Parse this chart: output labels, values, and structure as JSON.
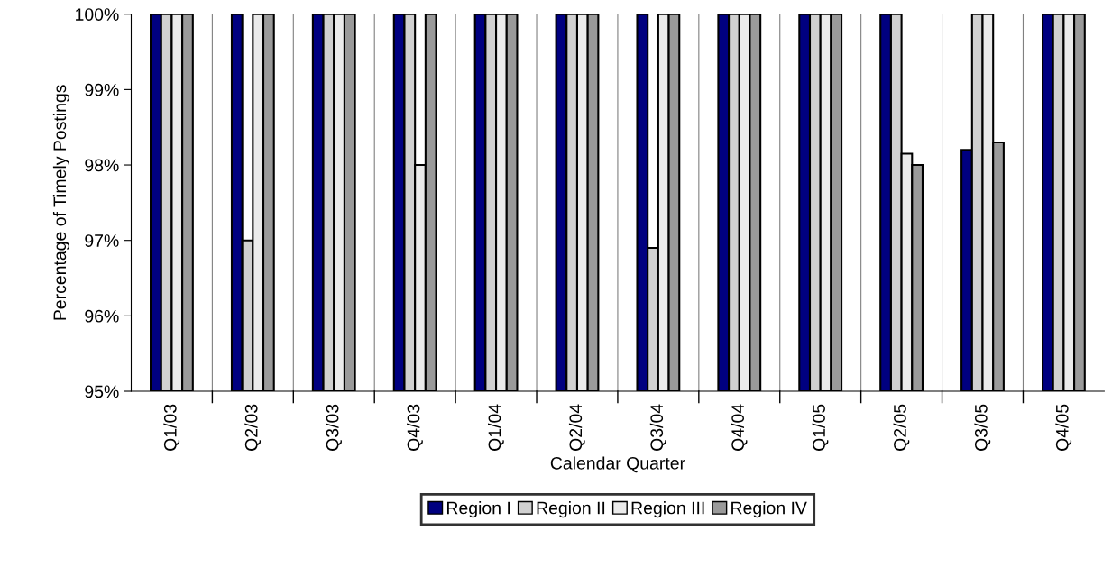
{
  "chart_data": {
    "type": "bar",
    "xlabel": "Calendar Quarter",
    "ylabel": "Percentage of Timely Postings",
    "categories": [
      "Q1/03",
      "Q2/03",
      "Q3/03",
      "Q4/03",
      "Q1/04",
      "Q2/04",
      "Q3/04",
      "Q4/04",
      "Q1/05",
      "Q2/05",
      "Q3/05",
      "Q4/05"
    ],
    "series": [
      {
        "name": "Region I",
        "color": "#000080",
        "values": [
          100,
          100,
          100,
          100,
          100,
          100,
          100,
          100,
          100,
          100,
          98.2,
          100
        ]
      },
      {
        "name": "Region II",
        "color": "#d0d0d0",
        "values": [
          100,
          97.0,
          100,
          100,
          100,
          100,
          96.9,
          100,
          100,
          100,
          100,
          100
        ]
      },
      {
        "name": "Region III",
        "color": "#ebebeb",
        "values": [
          100,
          100,
          100,
          98.0,
          100,
          100,
          100,
          100,
          100,
          98.15,
          100,
          100
        ]
      },
      {
        "name": "Region IV",
        "color": "#9a9a9a",
        "values": [
          100,
          100,
          100,
          100,
          100,
          100,
          100,
          100,
          100,
          98.0,
          98.3,
          100
        ]
      }
    ],
    "ylim": [
      95,
      100
    ],
    "yticks": [
      {
        "value": 95,
        "label": "95%"
      },
      {
        "value": 96,
        "label": "96%"
      },
      {
        "value": 97,
        "label": "97%"
      },
      {
        "value": 98,
        "label": "98%"
      },
      {
        "value": 99,
        "label": "99%"
      },
      {
        "value": 100,
        "label": "100%"
      }
    ],
    "grid": "x",
    "legend": "bottom"
  }
}
